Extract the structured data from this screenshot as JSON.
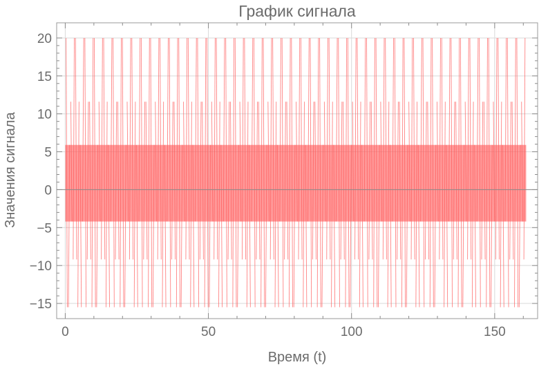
{
  "chart_data": {
    "type": "line",
    "title": "График сигнала",
    "xlabel": "Время (t)",
    "ylabel": "Значения сигнала",
    "xlim": [
      -3,
      165
    ],
    "ylim": [
      -17,
      22
    ],
    "x_ticks": [
      "0",
      "50",
      "100",
      "150"
    ],
    "y_ticks": [
      "−15",
      "−10",
      "−5",
      "0",
      "5",
      "10",
      "15",
      "20"
    ],
    "grid": true,
    "legend": "none",
    "series": [
      {
        "color": "#ff5a5a",
        "x_range": [
          0,
          161
        ],
        "dense_band": [
          -4.2,
          5.9
        ],
        "envelope_levels": [
          20,
          11.6,
          5.9,
          -4.2,
          -9.2,
          -15.5
        ]
      }
    ]
  }
}
